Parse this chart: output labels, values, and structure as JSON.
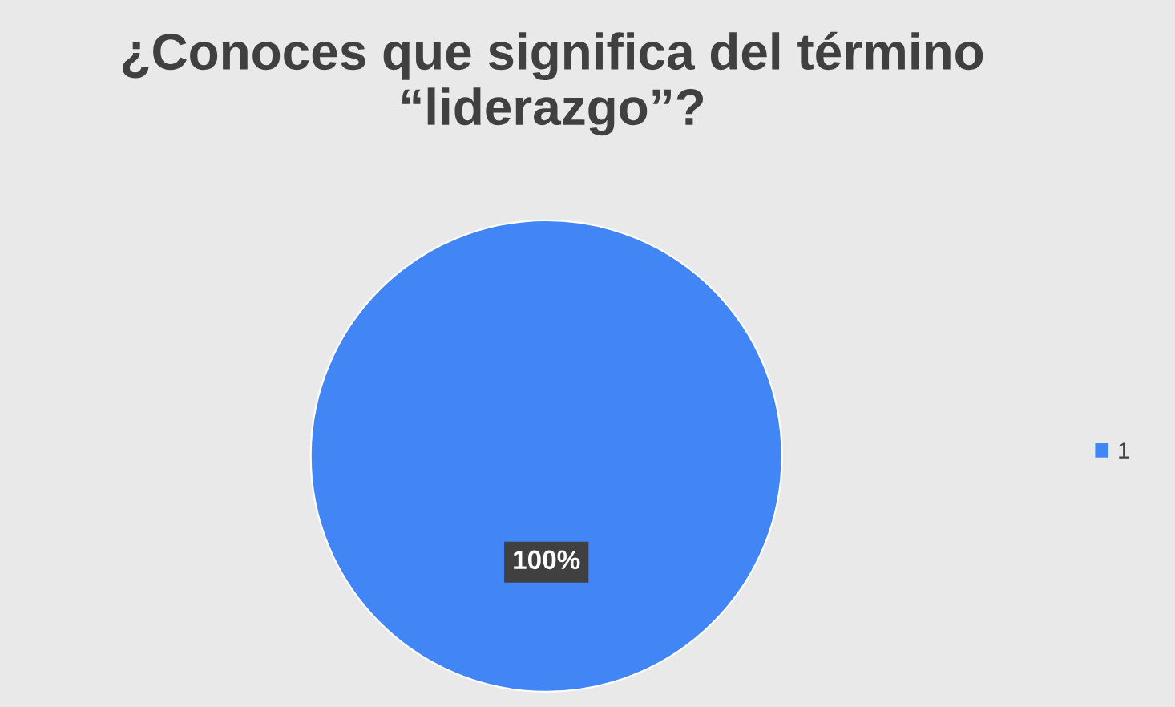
{
  "chart_data": {
    "type": "pie",
    "title": "¿Conoces que significa del término “liderazgo”?",
    "categories": [
      "1"
    ],
    "values": [
      100
    ],
    "colors": [
      "#4285f4"
    ],
    "value_labels": [
      "100%"
    ],
    "legend": "right"
  }
}
